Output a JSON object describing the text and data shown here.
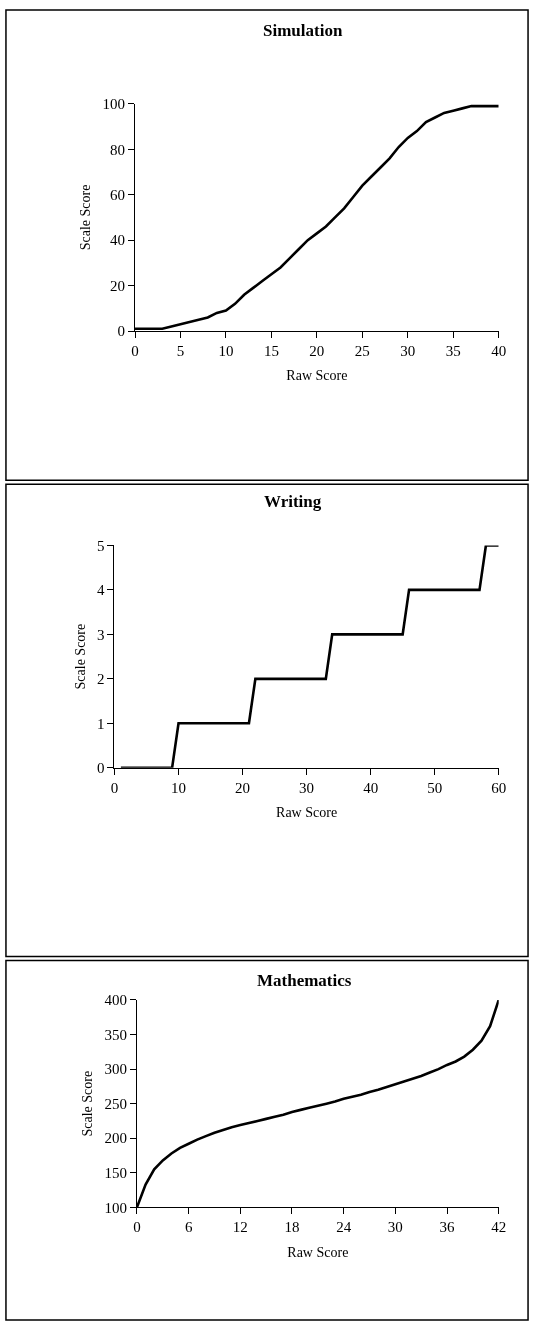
{
  "chart_data": [
    {
      "type": "line",
      "title": "Simulation",
      "xlabel": "Raw Score",
      "ylabel": "Scale Score",
      "x": [
        0,
        1,
        2,
        3,
        4,
        5,
        6,
        7,
        8,
        9,
        10,
        11,
        12,
        13,
        14,
        15,
        16,
        17,
        18,
        19,
        20,
        21,
        22,
        23,
        24,
        25,
        26,
        27,
        28,
        29,
        30,
        31,
        32,
        33,
        34,
        35,
        36,
        37,
        38,
        39,
        40
      ],
      "series": [
        {
          "color": "#000000",
          "values": [
            1,
            1,
            1,
            1,
            2,
            3,
            4,
            5,
            6,
            8,
            9,
            12,
            16,
            19,
            22,
            25,
            28,
            32,
            36,
            40,
            43,
            46,
            50,
            54,
            59,
            64,
            68,
            72,
            76,
            81,
            85,
            88,
            92,
            94,
            96,
            97,
            98,
            99,
            99,
            99,
            99
          ]
        }
      ],
      "xlim": [
        0,
        40
      ],
      "xticks": [
        0,
        5,
        10,
        15,
        20,
        25,
        30,
        35,
        40
      ],
      "ylim": [
        0,
        100
      ],
      "yticks": [
        0,
        20,
        40,
        60,
        80,
        100
      ],
      "marker": "none",
      "line_style": "solid"
    },
    {
      "type": "line",
      "title": "Writing",
      "xlabel": "Raw Score",
      "ylabel": "Scale Score",
      "x": [
        1,
        9,
        10,
        21,
        22,
        33,
        34,
        45,
        46,
        57,
        58,
        60
      ],
      "series": [
        {
          "color": "#000000",
          "values": [
            0,
            0,
            1,
            1,
            2,
            2,
            3,
            3,
            4,
            4,
            5,
            5
          ]
        }
      ],
      "xlim": [
        0,
        60
      ],
      "xticks": [
        0,
        10,
        20,
        30,
        40,
        50,
        60
      ],
      "ylim": [
        0,
        5
      ],
      "yticks": [
        0,
        1,
        2,
        3,
        4,
        5
      ],
      "marker": "none",
      "line_style": "solid"
    },
    {
      "type": "line",
      "title": "Mathematics",
      "xlabel": "Raw Score",
      "ylabel": "Scale Score",
      "x": [
        0,
        1,
        2,
        3,
        4,
        5,
        6,
        7,
        8,
        9,
        10,
        11,
        12,
        13,
        14,
        15,
        16,
        17,
        18,
        19,
        20,
        21,
        22,
        23,
        24,
        25,
        26,
        27,
        28,
        29,
        30,
        31,
        32,
        33,
        34,
        35,
        36,
        37,
        38,
        39,
        40,
        41,
        42
      ],
      "series": [
        {
          "color": "#000000",
          "values": [
            100,
            133,
            155,
            168,
            178,
            186,
            192,
            198,
            203,
            208,
            212,
            216,
            219,
            222,
            225,
            228,
            231,
            234,
            238,
            241,
            244,
            247,
            250,
            253,
            257,
            260,
            263,
            267,
            270,
            274,
            278,
            282,
            286,
            290,
            295,
            300,
            306,
            311,
            318,
            328,
            341,
            362,
            400
          ]
        }
      ],
      "xlim": [
        0,
        42
      ],
      "xticks": [
        0,
        6,
        12,
        18,
        24,
        30,
        36,
        42
      ],
      "ylim": [
        100,
        400
      ],
      "yticks": [
        100,
        150,
        200,
        250,
        300,
        350,
        400
      ],
      "marker": "none",
      "line_style": "solid"
    }
  ]
}
